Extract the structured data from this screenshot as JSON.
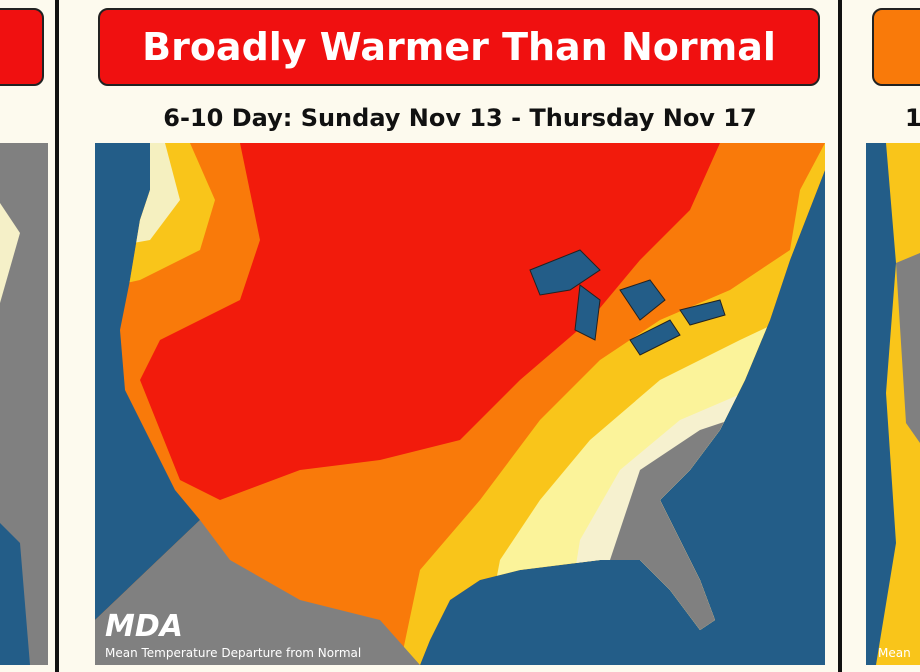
{
  "left_panel": {},
  "main_panel": {
    "title": "Broadly Warmer Than Normal",
    "subtitle": "6-10 Day: Sunday Nov 13 - Thursday Nov 17",
    "logo": "MDA",
    "caption": "Mean Temperature Departure from Normal"
  },
  "right_panel": {
    "subtitle_fragment": "1",
    "caption_fragment": "Mean"
  }
}
